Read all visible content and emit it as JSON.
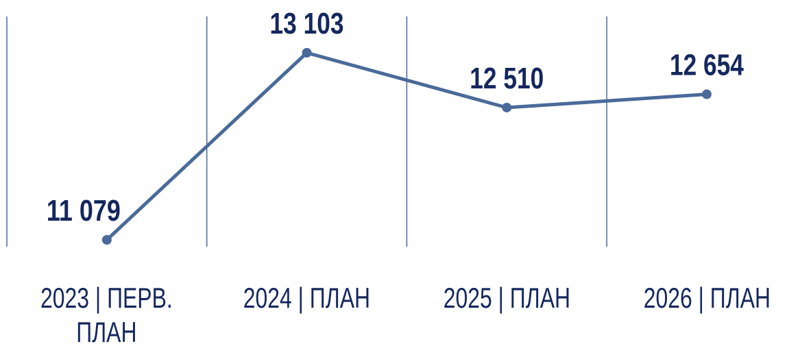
{
  "chart_data": {
    "type": "line",
    "categories": [
      "2023 | ПЕРВ. ПЛАН",
      "2024 | ПЛАН",
      "2025 | ПЛАН",
      "2026 | ПЛАН"
    ],
    "series": [
      {
        "color": "#4a6a99",
        "values": [
          11079,
          13103,
          12510,
          12654
        ],
        "value_labels": [
          "11 079",
          "13 103",
          "12 510",
          "12 654"
        ]
      }
    ]
  }
}
